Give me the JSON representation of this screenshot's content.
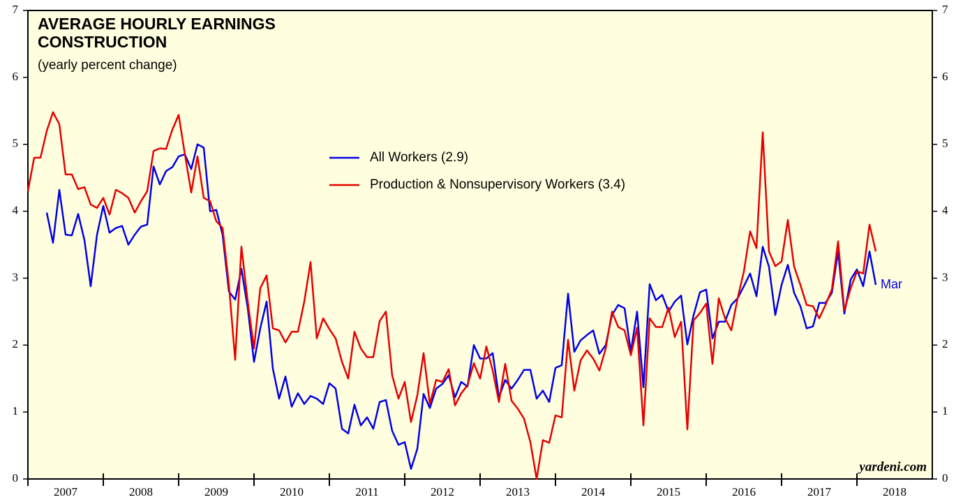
{
  "chart_data": {
    "type": "line",
    "title": [
      "AVERAGE HOURLY EARNINGS",
      "CONSTRUCTION"
    ],
    "subtitle": "(yearly percent change)",
    "annotations": [
      "Mar",
      "yardeni.com"
    ],
    "x": [
      2007,
      2007.083,
      2007.167,
      2007.25,
      2007.333,
      2007.417,
      2007.5,
      2007.583,
      2007.667,
      2007.75,
      2007.833,
      2007.917,
      2008,
      2008.083,
      2008.167,
      2008.25,
      2008.333,
      2008.417,
      2008.5,
      2008.583,
      2008.667,
      2008.75,
      2008.833,
      2008.917,
      2009,
      2009.083,
      2009.167,
      2009.25,
      2009.333,
      2009.417,
      2009.5,
      2009.583,
      2009.667,
      2009.75,
      2009.833,
      2009.917,
      2010,
      2010.083,
      2010.167,
      2010.25,
      2010.333,
      2010.417,
      2010.5,
      2010.583,
      2010.667,
      2010.75,
      2010.833,
      2010.917,
      2011,
      2011.083,
      2011.167,
      2011.25,
      2011.333,
      2011.417,
      2011.5,
      2011.583,
      2011.667,
      2011.75,
      2011.833,
      2011.917,
      2012,
      2012.083,
      2012.167,
      2012.25,
      2012.333,
      2012.417,
      2012.5,
      2012.583,
      2012.667,
      2012.75,
      2012.833,
      2012.917,
      2013,
      2013.083,
      2013.167,
      2013.25,
      2013.333,
      2013.417,
      2013.5,
      2013.583,
      2013.667,
      2013.75,
      2013.833,
      2013.917,
      2014,
      2014.083,
      2014.167,
      2014.25,
      2014.333,
      2014.417,
      2014.5,
      2014.583,
      2014.667,
      2014.75,
      2014.833,
      2014.917,
      2015,
      2015.083,
      2015.167,
      2015.25,
      2015.333,
      2015.417,
      2015.5,
      2015.583,
      2015.667,
      2015.75,
      2015.833,
      2015.917,
      2016,
      2016.083,
      2016.167,
      2016.25,
      2016.333,
      2016.417,
      2016.5,
      2016.583,
      2016.667,
      2016.75,
      2016.833,
      2016.917,
      2017,
      2017.083,
      2017.167,
      2017.25,
      2017.333,
      2017.417,
      2017.5,
      2017.583,
      2017.667,
      2017.75,
      2017.833,
      2017.917,
      2018,
      2018.083,
      2018.167,
      2018.25
    ],
    "series": [
      {
        "name": "All Workers (2.9)",
        "color": "#0000e6",
        "values": [
          null,
          null,
          null,
          3.98,
          3.53,
          4.32,
          3.65,
          3.64,
          3.96,
          3.57,
          2.88,
          3.65,
          4.08,
          3.68,
          3.75,
          3.78,
          3.5,
          3.65,
          3.77,
          3.8,
          4.67,
          4.4,
          4.6,
          4.66,
          4.82,
          4.85,
          4.63,
          5.0,
          4.95,
          4.0,
          4.02,
          3.65,
          2.8,
          2.68,
          3.14,
          2.55,
          1.75,
          2.25,
          2.65,
          1.65,
          1.2,
          1.53,
          1.08,
          1.28,
          1.12,
          1.24,
          1.2,
          1.12,
          1.43,
          1.35,
          0.75,
          0.68,
          1.11,
          0.8,
          0.92,
          0.75,
          1.15,
          1.18,
          0.72,
          0.51,
          0.55,
          0.15,
          0.45,
          1.27,
          1.06,
          1.35,
          1.42,
          1.55,
          1.22,
          1.45,
          1.38,
          2.0,
          1.8,
          1.8,
          1.88,
          1.22,
          1.48,
          1.35,
          1.48,
          1.63,
          1.63,
          1.2,
          1.32,
          1.15,
          1.66,
          1.7,
          2.77,
          1.9,
          2.07,
          2.15,
          2.22,
          1.87,
          2.0,
          2.45,
          2.6,
          2.55,
          1.9,
          2.5,
          1.37,
          2.91,
          2.67,
          2.75,
          2.5,
          2.65,
          2.74,
          2.01,
          2.45,
          2.79,
          2.83,
          2.1,
          2.35,
          2.35,
          2.6,
          2.7,
          2.88,
          3.07,
          2.73,
          3.47,
          3.17,
          2.45,
          2.9,
          3.2,
          2.78,
          2.58,
          2.25,
          2.28,
          2.63,
          2.63,
          2.78,
          3.4,
          2.47,
          2.98,
          3.13,
          2.88,
          3.4,
          2.9
        ]
      },
      {
        "name": "Production & Nonsupervisory Workers (3.4)",
        "color": "#e60000",
        "values": [
          4.3,
          4.8,
          4.8,
          5.2,
          5.48,
          5.3,
          4.55,
          4.55,
          4.33,
          4.36,
          4.1,
          4.05,
          4.2,
          3.95,
          4.32,
          4.27,
          4.2,
          3.98,
          4.15,
          4.3,
          4.9,
          4.94,
          4.93,
          5.22,
          5.44,
          4.85,
          4.28,
          4.82,
          4.2,
          4.15,
          3.85,
          3.75,
          2.9,
          1.78,
          3.47,
          2.65,
          1.95,
          2.85,
          3.04,
          2.25,
          2.22,
          2.04,
          2.2,
          2.2,
          2.65,
          3.24,
          2.1,
          2.4,
          2.24,
          2.1,
          1.75,
          1.5,
          2.2,
          1.95,
          1.82,
          1.82,
          2.36,
          2.5,
          1.55,
          1.2,
          1.45,
          0.85,
          1.25,
          1.88,
          1.12,
          1.48,
          1.45,
          1.64,
          1.1,
          1.28,
          1.4,
          1.73,
          1.5,
          1.98,
          1.62,
          1.15,
          1.72,
          1.17,
          1.05,
          0.9,
          0.55,
          0.0,
          0.58,
          0.54,
          0.95,
          0.92,
          2.08,
          1.32,
          1.77,
          1.92,
          1.8,
          1.62,
          1.95,
          2.5,
          2.27,
          2.22,
          1.85,
          2.26,
          0.8,
          2.4,
          2.27,
          2.27,
          2.56,
          2.12,
          2.35,
          0.74,
          2.37,
          2.48,
          2.62,
          1.72,
          2.7,
          2.4,
          2.22,
          2.7,
          3.1,
          3.7,
          3.45,
          5.18,
          3.4,
          3.18,
          3.25,
          3.87,
          3.17,
          2.9,
          2.6,
          2.58,
          2.4,
          2.6,
          2.83,
          3.55,
          2.52,
          2.85,
          3.1,
          3.07,
          3.8,
          3.4
        ]
      }
    ],
    "xlim": [
      2007,
      2019
    ],
    "xticks": [
      2007,
      2008,
      2009,
      2010,
      2011,
      2012,
      2013,
      2014,
      2015,
      2016,
      2017,
      2018
    ],
    "ylim": [
      0,
      7
    ],
    "yticks": [
      0,
      1,
      2,
      3,
      4,
      5,
      6,
      7
    ],
    "y2lim": [
      0,
      7
    ],
    "y2ticks": [
      0,
      1,
      2,
      3,
      4,
      5,
      6,
      7
    ],
    "background": "#ffffe0"
  }
}
